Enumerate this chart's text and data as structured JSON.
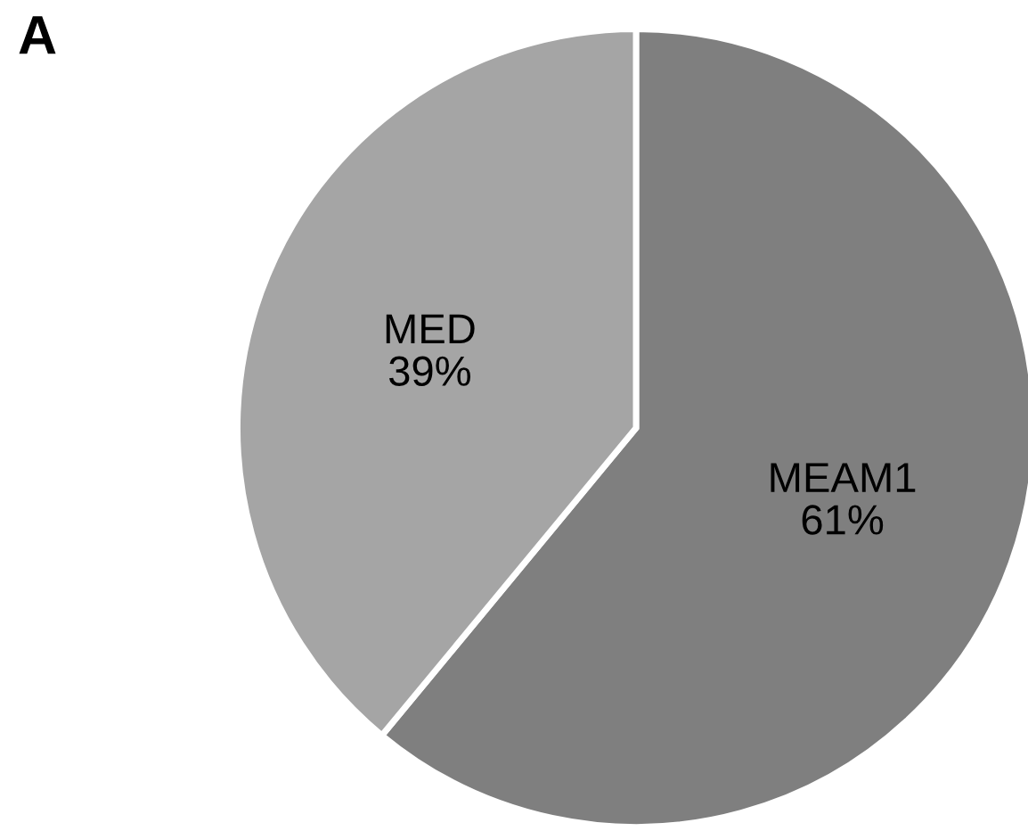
{
  "chart_data": {
    "type": "pie",
    "title": "A",
    "categories": [
      "MEAM1",
      "MED"
    ],
    "values": [
      61,
      39
    ],
    "value_labels": [
      "61%",
      "39%"
    ],
    "colors": [
      "#7f7f7f",
      "#a5a5a5"
    ]
  }
}
